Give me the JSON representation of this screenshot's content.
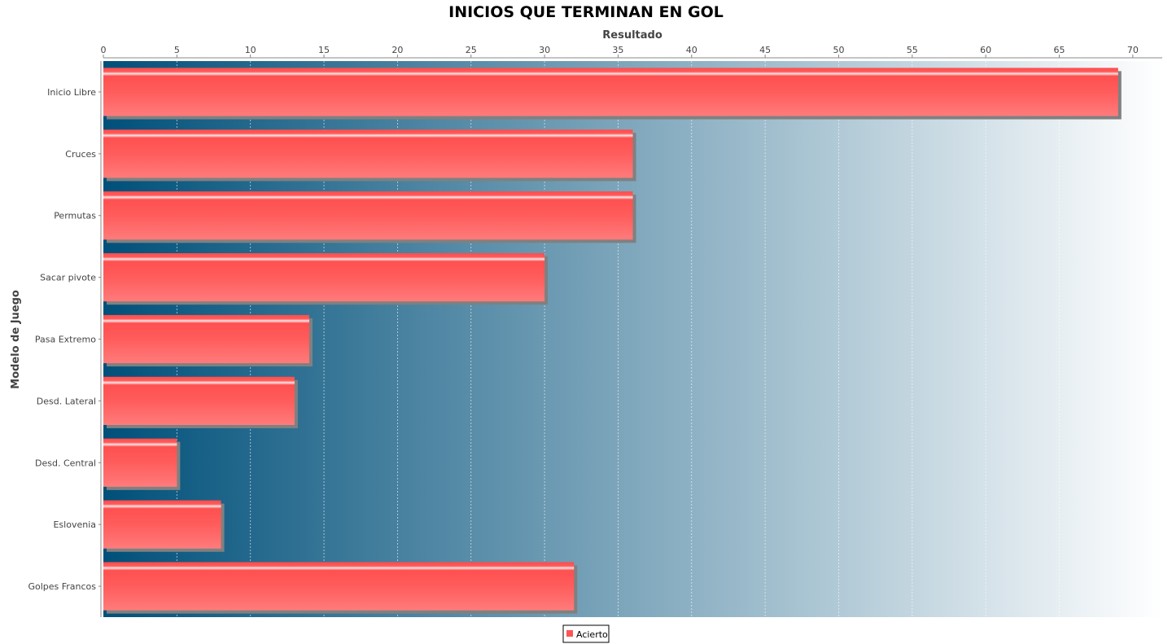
{
  "chart_data": {
    "type": "bar",
    "orientation": "horizontal",
    "title": "INICIOS QUE TERMINAN EN GOL",
    "xlabel": "Resultado",
    "ylabel": "Modelo de Juego",
    "x_axis_position": "top",
    "xlim": [
      0,
      72
    ],
    "x_ticks": [
      "0",
      "5",
      "10",
      "15",
      "20",
      "25",
      "30",
      "35",
      "40",
      "45",
      "50",
      "55",
      "60",
      "65",
      "70"
    ],
    "grid": true,
    "categories": [
      "Inicio Libre",
      "Cruces",
      "Permutas",
      "Sacar pivote",
      "Pasa Extremo",
      "Desd. Lateral",
      "Desd. Central",
      "Eslovenia",
      "Golpes Francos"
    ],
    "series": [
      {
        "name": "Acierto",
        "color": "#ff5555",
        "values": [
          69,
          36,
          36,
          30,
          14,
          13,
          5,
          8,
          32
        ]
      }
    ],
    "legend_position": "bottom-center",
    "plot_background_gradient": [
      "#00507a",
      "#ffffff"
    ]
  }
}
